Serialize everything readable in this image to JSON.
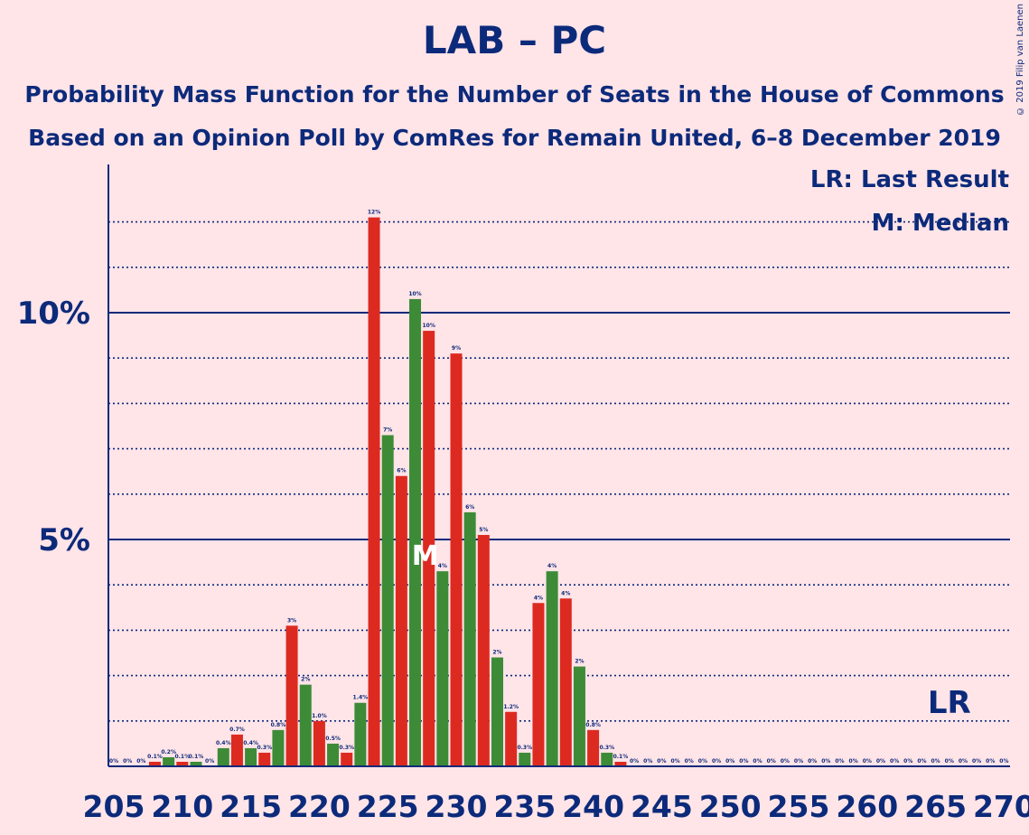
{
  "title": "LAB – PC",
  "subtitle1": "Probability Mass Function for the Number of Seats in the House of Commons",
  "subtitle2": "Based on an Opinion Poll by ComRes for Remain United, 6–8 December 2019",
  "copyright": "© 2019 Filip van Laenen",
  "legend": {
    "last_result": "LR: Last Result",
    "median": "M: Median"
  },
  "colors": {
    "background": "#ffe4e8",
    "text": "#0c2a7a",
    "red": "#dd2a20",
    "green": "#3d8b37"
  },
  "chart_data": {
    "type": "bar",
    "x": [
      205,
      206,
      207,
      208,
      209,
      210,
      211,
      212,
      213,
      214,
      215,
      216,
      217,
      218,
      219,
      220,
      221,
      222,
      223,
      224,
      225,
      226,
      227,
      228,
      229,
      230,
      231,
      232,
      233,
      234,
      235,
      236,
      237,
      238,
      239,
      240,
      241,
      242,
      243,
      244,
      245,
      246,
      247,
      248,
      249,
      250,
      251,
      252,
      253,
      254,
      255,
      256,
      257,
      258,
      259,
      260,
      261,
      262,
      263,
      264,
      265,
      266,
      267,
      268,
      269,
      270
    ],
    "values": [
      0,
      0,
      0,
      0.1,
      0.2,
      0.1,
      0.1,
      0,
      0.4,
      0.7,
      0.4,
      0.3,
      0.8,
      3.1,
      1.8,
      1.0,
      0.5,
      0.3,
      1.4,
      12.1,
      7.3,
      6.4,
      10.3,
      9.6,
      4.3,
      9.1,
      5.6,
      5.1,
      2.4,
      1.2,
      0.3,
      3.6,
      4.3,
      3.7,
      2.2,
      0.8,
      0.3,
      0.1,
      0,
      0,
      0,
      0,
      0,
      0,
      0,
      0,
      0,
      0,
      0,
      0,
      0,
      0,
      0,
      0,
      0,
      0,
      0,
      0,
      0,
      0,
      0,
      0,
      0,
      0,
      0,
      0
    ],
    "data_labels": [
      "0%",
      "0%",
      "0%",
      "0.1%",
      "0.2%",
      "0.1%",
      "0.1%",
      "0%",
      "0.4%",
      "0.7%",
      "0.4%",
      "0.3%",
      "0.8%",
      "3%",
      "2%",
      "1.0%",
      "0.5%",
      "0.3%",
      "1.4%",
      "12%",
      "7%",
      "6%",
      "10%",
      "10%",
      "4%",
      "9%",
      "6%",
      "5%",
      "2%",
      "1.2%",
      "0.3%",
      "4%",
      "4%",
      "4%",
      "2%",
      "0.8%",
      "0.3%",
      "0.1%",
      "0%",
      "0%",
      "0%",
      "0%",
      "0%",
      "0%",
      "0%",
      "0%",
      "0%",
      "0%",
      "0%",
      "0%",
      "0%",
      "0%",
      "0%",
      "0%",
      "0%",
      "0%",
      "0%",
      "0%",
      "0%",
      "0%",
      "0%",
      "0%",
      "0%",
      "0%",
      "0%",
      "0%"
    ],
    "xticks": [
      205,
      210,
      215,
      220,
      225,
      230,
      235,
      240,
      245,
      250,
      255,
      260,
      265,
      270
    ],
    "xtick_labels": [
      "205",
      "210",
      "215",
      "220",
      "225",
      "230",
      "235",
      "240",
      "245",
      "250",
      "255",
      "260",
      "265",
      "270"
    ],
    "yticks_major": [
      5,
      10
    ],
    "ytick_labels": [
      "5%",
      "10%"
    ],
    "yticks_minor": [
      1,
      2,
      3,
      4,
      6,
      7,
      8,
      9,
      11,
      12
    ],
    "ylim": [
      0,
      13.2
    ],
    "xlim": [
      204.5,
      270.5
    ],
    "median": 228,
    "median_label": "M",
    "last_result": 266,
    "last_result_label": "LR",
    "bar_color_rule": "even seat = red, odd seat = green"
  }
}
